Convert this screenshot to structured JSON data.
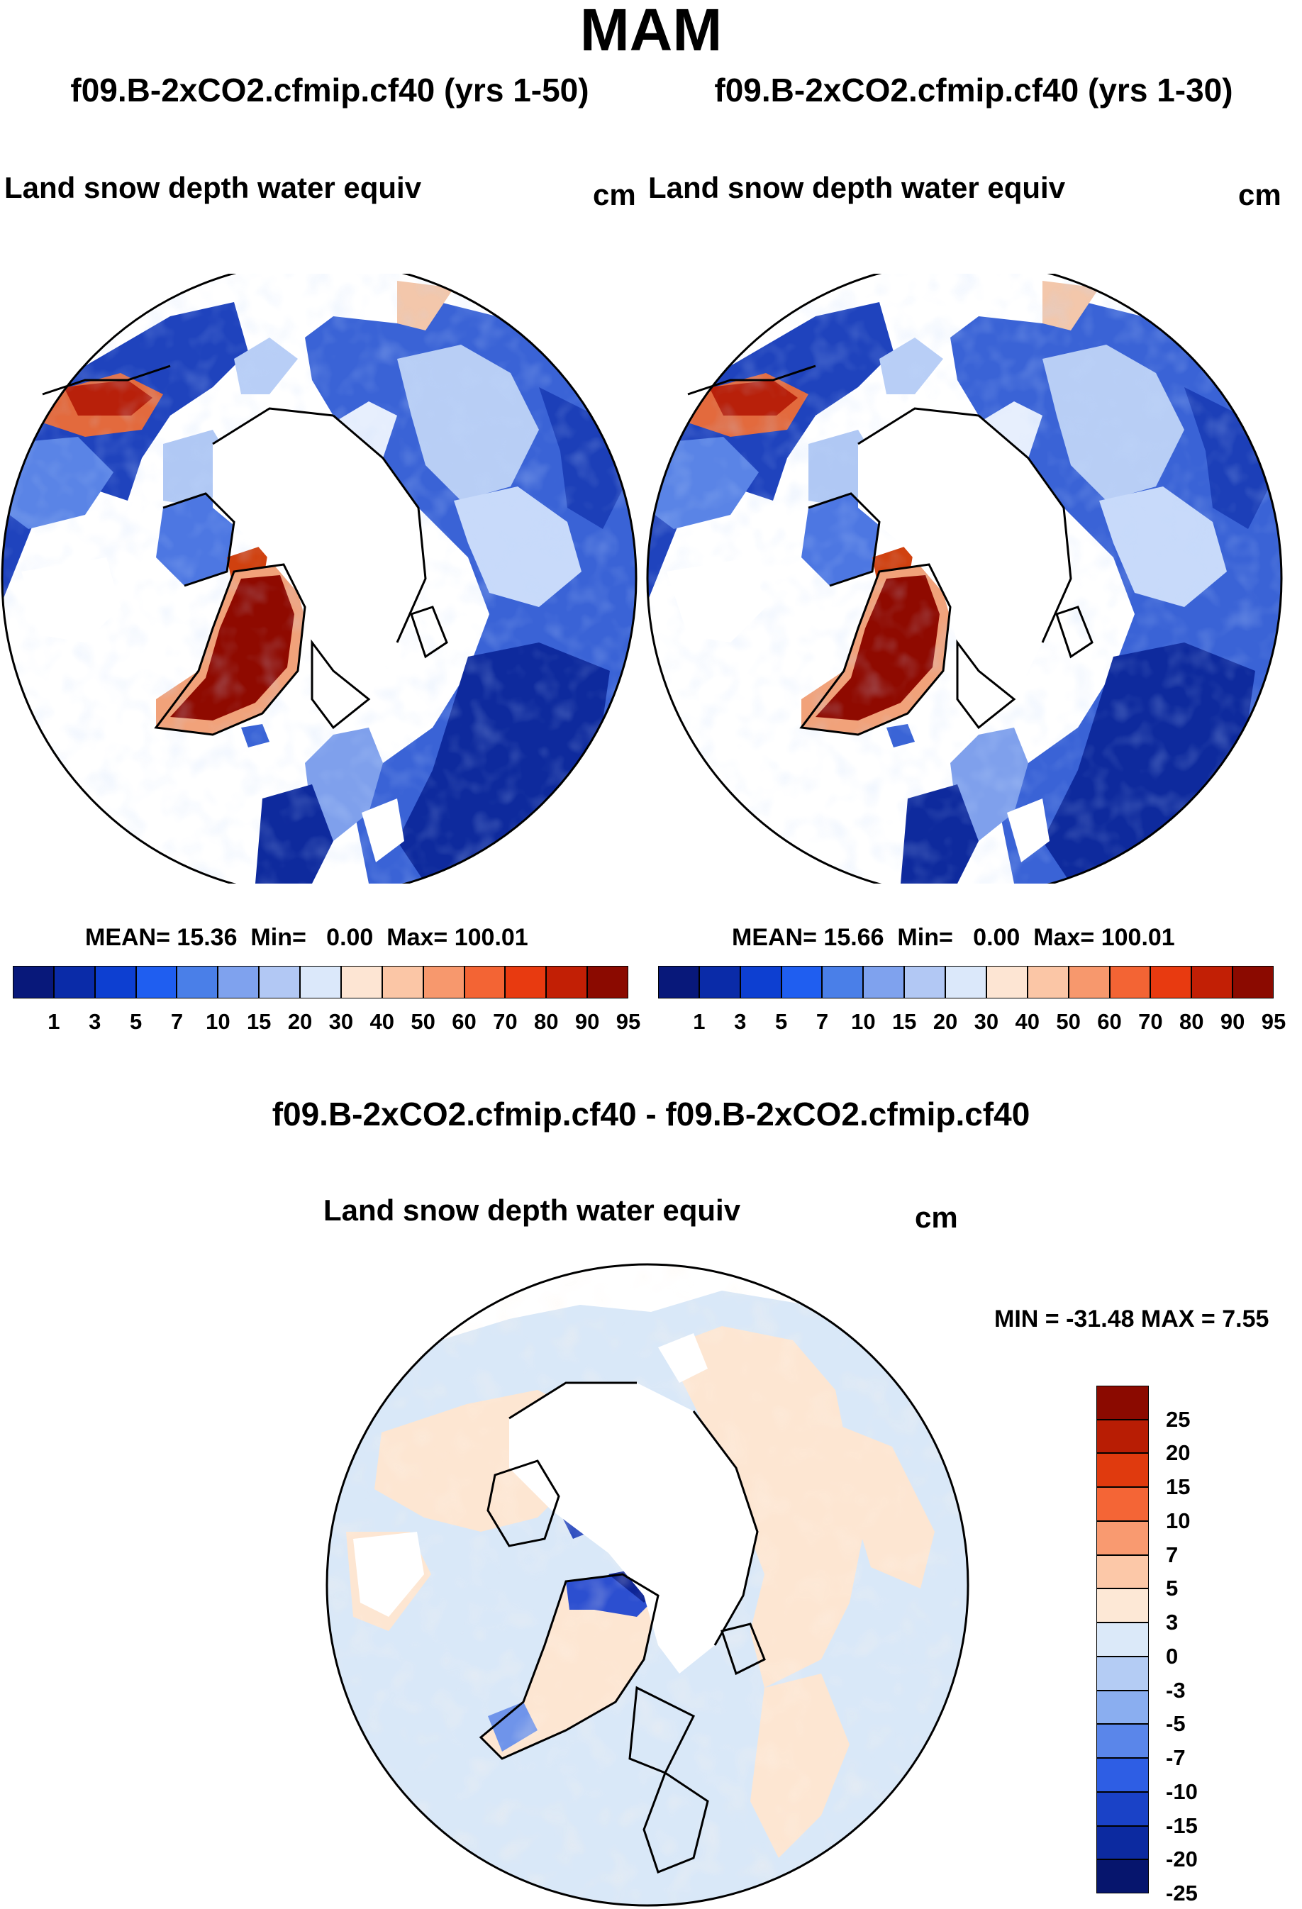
{
  "season_title": "MAM",
  "colors": {
    "land_snow_blue_dark": "#0c239e",
    "land_snow_blue_mid": "#2f5ed1",
    "land_snow_blue_light": "#a6c1f4",
    "greenland_red": "#8f0a00",
    "diff_peach": "#fde8d6",
    "diff_lightblue": "#d9e8f8"
  },
  "panels": [
    {
      "case_title": "f09.B-2xCO2.cfmip.cf40 (yrs 1-50)",
      "field_title": "Land snow depth water equiv",
      "units": "cm",
      "mean_label": "MEAN=",
      "mean_value": "15.36",
      "min_label": "Min=",
      "min_value": "0.00",
      "max_label": "Max=",
      "max_value": "100.01"
    },
    {
      "case_title": "f09.B-2xCO2.cfmip.cf40 (yrs 1-30)",
      "field_title": "Land snow depth water equiv",
      "units": "cm",
      "mean_label": "MEAN=",
      "mean_value": "15.66",
      "min_label": "Min=",
      "min_value": "0.00",
      "max_label": "Max=",
      "max_value": "100.01"
    }
  ],
  "abs_colorbar": {
    "colors": [
      "#08187a",
      "#0a2ba8",
      "#0d3fd1",
      "#1f5ef0",
      "#4a7fe8",
      "#7fa2ee",
      "#b2c8f4",
      "#dbe8fa",
      "#fde5d3",
      "#fbc6a6",
      "#f7986d",
      "#f36434",
      "#e83a10",
      "#c21f05",
      "#8b0a00"
    ],
    "ticks": [
      "1",
      "3",
      "5",
      "7",
      "10",
      "15",
      "20",
      "30",
      "40",
      "50",
      "60",
      "70",
      "80",
      "90",
      "95"
    ]
  },
  "difference": {
    "title": "f09.B-2xCO2.cfmip.cf40 - f09.B-2xCO2.cfmip.cf40",
    "field_title": "Land snow depth water equiv",
    "units": "cm",
    "range_text": "MIN = -31.48 MAX =    7.55",
    "colorbar": {
      "colors": [
        "#8b0a00",
        "#b81d04",
        "#e03a0e",
        "#f46536",
        "#f99a70",
        "#fcc8a8",
        "#fde8d6",
        "#dbe9f9",
        "#b4ccf4",
        "#8aaef0",
        "#5a86ea",
        "#2e5ee4",
        "#1a42c7",
        "#0c2aa0",
        "#06156d"
      ],
      "ticks": [
        "25",
        "20",
        "15",
        "10",
        "7",
        "5",
        "3",
        "0",
        "-3",
        "-5",
        "-7",
        "-10",
        "-15",
        "-20",
        "-25"
      ]
    }
  }
}
